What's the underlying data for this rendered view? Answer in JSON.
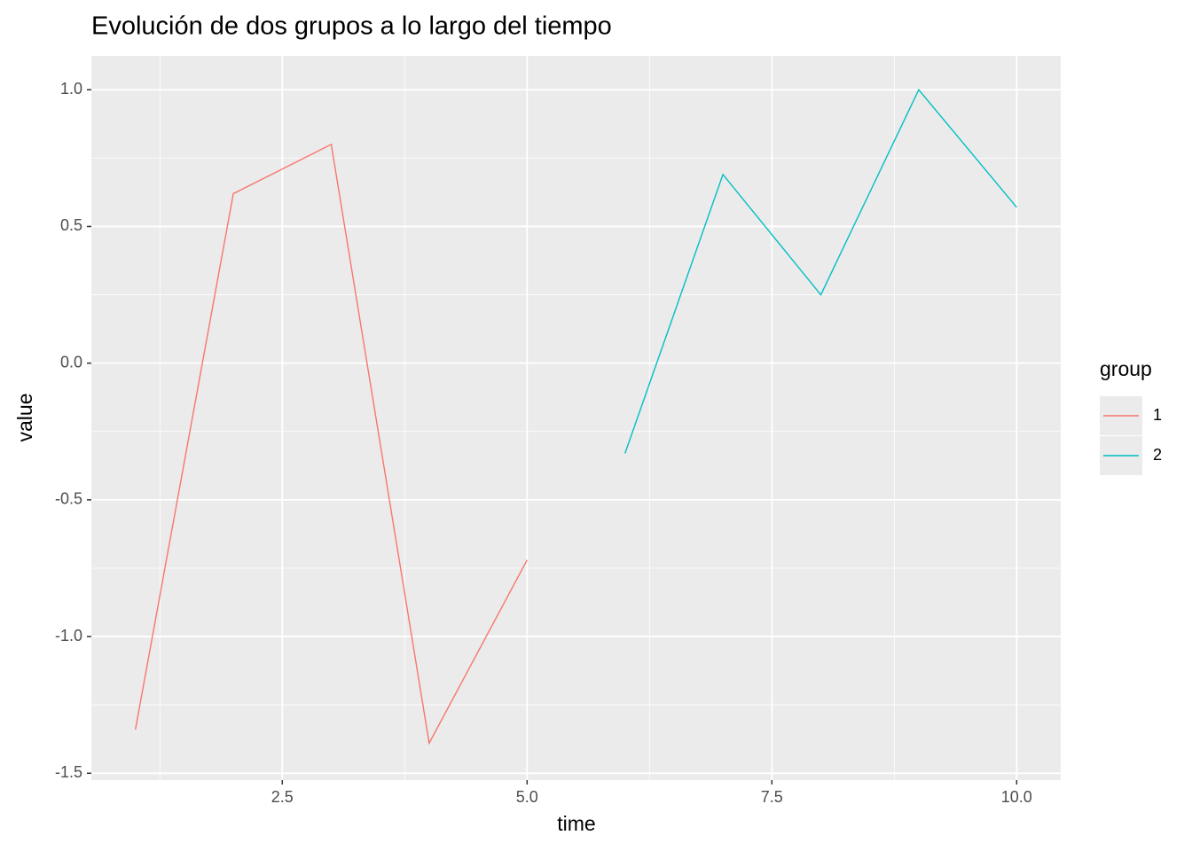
{
  "chart_data": {
    "type": "line",
    "title": "Evolución de dos grupos a lo largo del tiempo",
    "x_label": "time",
    "y_label": "value",
    "x": [
      1,
      2,
      3,
      4,
      5,
      6,
      7,
      8,
      9,
      10
    ],
    "series": [
      {
        "name": "1",
        "color": "#F8766D",
        "values": [
          -1.34,
          0.62,
          0.8,
          -1.39,
          -0.72,
          null,
          null,
          null,
          null,
          null
        ]
      },
      {
        "name": "2",
        "color": "#00BFC4",
        "values": [
          null,
          null,
          null,
          null,
          null,
          -0.33,
          0.69,
          0.25,
          1.0,
          0.57
        ]
      }
    ],
    "legend_title": "group",
    "legend": "right",
    "xlim": [
      0.55,
      10.45
    ],
    "xticks": [
      2.5,
      {
        "value": 5,
        "label": "5.0"
      },
      7.5,
      {
        "value": 10,
        "label": "10.0"
      }
    ],
    "x_minor_breaks": [
      1.25,
      3.75,
      6.25,
      8.75
    ],
    "ylim": [
      -1.525,
      1.124
    ],
    "yticks": [
      -1.5,
      {
        "value": -1,
        "label": "-1.0"
      },
      -0.5,
      {
        "value": 0,
        "label": "0.0"
      },
      0.5,
      {
        "value": 1,
        "label": "1.0"
      }
    ],
    "y_minor_breaks": [
      -1.25,
      -0.75,
      -0.25,
      0.25,
      0.75
    ],
    "grid": true
  }
}
